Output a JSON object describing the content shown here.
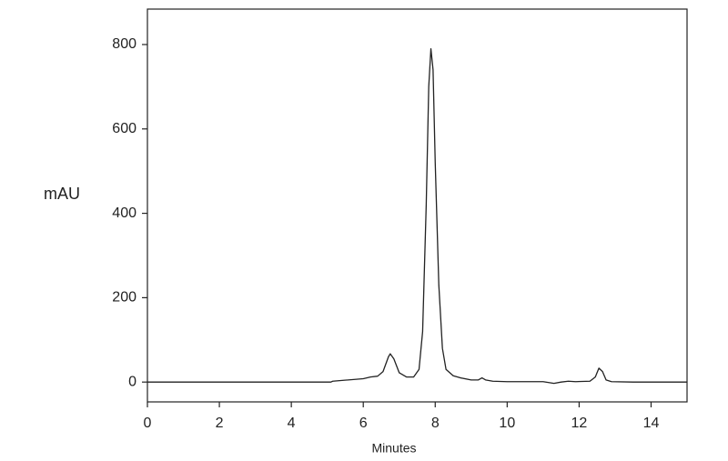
{
  "chart_data": {
    "type": "line",
    "x_label": "Minutes",
    "y_label": "mAU",
    "x": [
      0,
      5.1,
      5.15,
      6.0,
      6.2,
      6.4,
      6.55,
      6.7,
      6.75,
      6.85,
      7.0,
      7.2,
      7.4,
      7.55,
      7.65,
      7.75,
      7.82,
      7.88,
      7.94,
      8.0,
      8.1,
      8.2,
      8.3,
      8.5,
      8.7,
      9.0,
      9.2,
      9.3,
      9.4,
      9.6,
      10,
      11,
      11.3,
      11.5,
      11.7,
      11.9,
      12.3,
      12.45,
      12.55,
      12.65,
      12.75,
      12.9,
      13.5,
      15
    ],
    "values": [
      0,
      0,
      2,
      8,
      12,
      14,
      25,
      60,
      67,
      55,
      22,
      12,
      12,
      30,
      120,
      420,
      700,
      790,
      740,
      520,
      230,
      80,
      30,
      15,
      10,
      5,
      5,
      10,
      5,
      2,
      1,
      1,
      -3,
      0,
      2,
      1,
      2,
      12,
      33,
      25,
      5,
      1,
      0,
      0
    ],
    "color": "#222222",
    "xlim": [
      0,
      15
    ],
    "xticks": [
      0,
      2,
      4,
      6,
      8,
      10,
      12,
      14
    ],
    "ylim": [
      -47,
      884
    ],
    "yticks": [
      0,
      200,
      400,
      600,
      800
    ],
    "grid": false
  }
}
